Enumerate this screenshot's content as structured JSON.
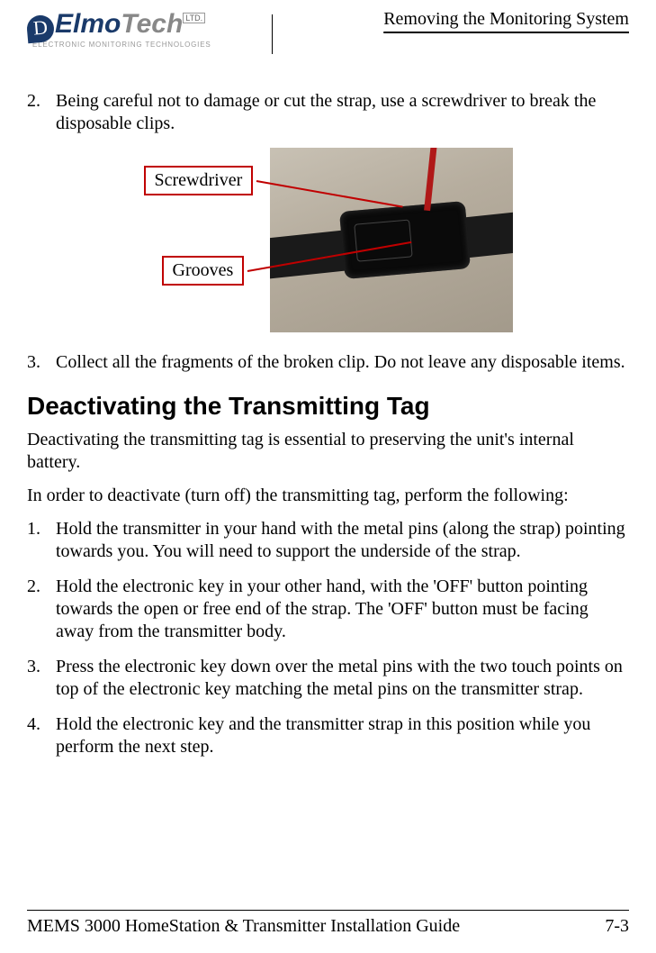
{
  "header": {
    "logo_main": "Elmo",
    "logo_tech": "Tech",
    "logo_ltd": "LTD.",
    "logo_sub": "ELECTRONIC MONITORING TECHNOLOGIES",
    "title": "Removing the Monitoring System"
  },
  "body": {
    "step2_num": "2.",
    "step2_text": "Being careful not to damage or cut the strap, use a screwdriver to break the disposable clips.",
    "callout1": "Screwdriver",
    "callout2": "Grooves",
    "step3_num": "3.",
    "step3_text": "Collect all the fragments of the broken clip. Do not leave any disposable items.",
    "section_heading": "Deactivating the Transmitting Tag",
    "para1": "Deactivating the transmitting tag is essential to preserving the unit's internal battery.",
    "para2": "In order to deactivate (turn off) the transmitting tag, perform the following:",
    "d1_num": "1.",
    "d1_text": "Hold the transmitter in your hand with the metal pins (along the strap) pointing towards you. You will need to support the underside of the strap.",
    "d2_num": "2.",
    "d2_text": "Hold the electronic key in your other hand, with the 'OFF' button pointing towards the open or free end of the strap. The 'OFF' button must be facing away from the transmitter body.",
    "d3_num": "3.",
    "d3_text": "Press the electronic key down over the metal pins with the two touch points on top of the electronic key matching the metal pins on the transmitter strap.",
    "d4_num": "4.",
    "d4_text": "Hold the electronic key and the transmitter strap in this position while you perform the next step."
  },
  "footer": {
    "left": "MEMS 3000 HomeStation & Transmitter Installation Guide",
    "right": "7-3"
  },
  "colors": {
    "callout_border": "#c00000",
    "logo_blue": "#1a3a6a"
  }
}
